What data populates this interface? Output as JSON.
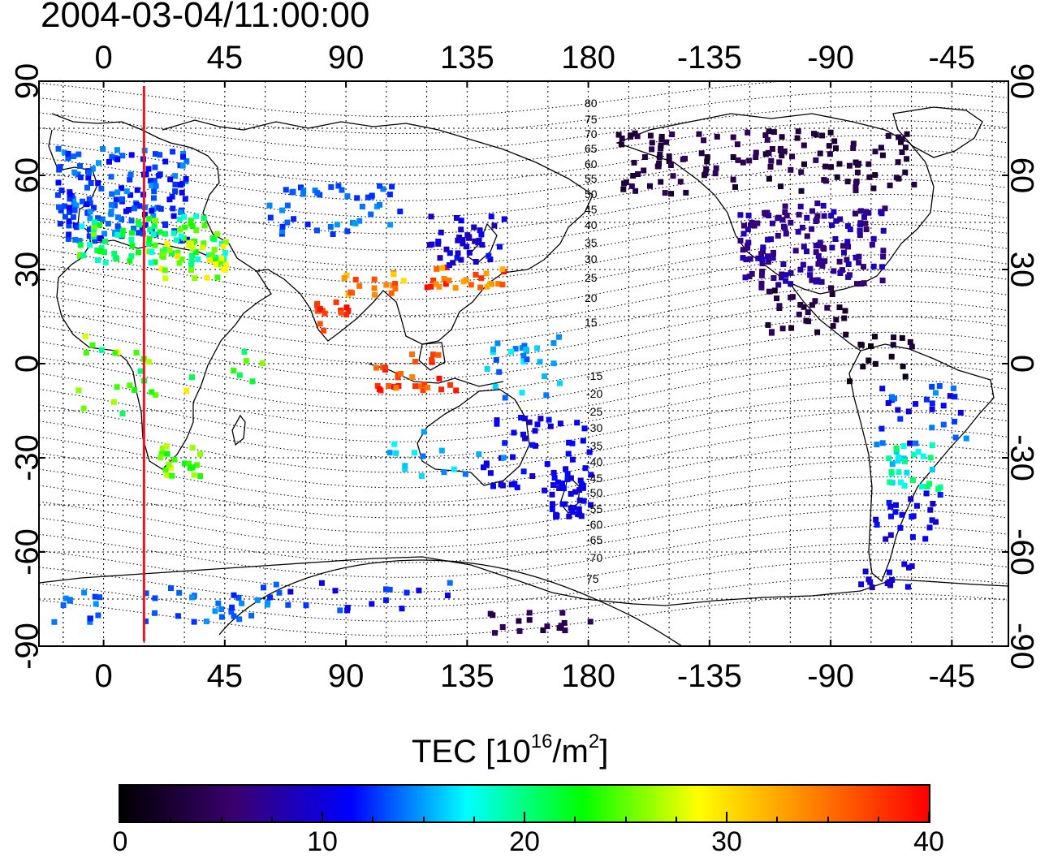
{
  "title": "2004-03-04/11:00:00",
  "map": {
    "top_longitude_labels": [
      "0",
      "45",
      "90",
      "135",
      "180",
      "-135",
      "-90",
      "-45"
    ],
    "bottom_longitude_labels": [
      "0",
      "45",
      "90",
      "135",
      "180",
      "-135",
      "-90",
      "-45"
    ],
    "left_latitude_labels": [
      "90",
      "60",
      "30",
      "0",
      "-30",
      "-60",
      "-90"
    ],
    "right_latitude_labels": [
      "90",
      "60",
      "30",
      "0",
      "-30",
      "-60",
      "-90"
    ],
    "contour_labels_north": [
      "80",
      "75",
      "70",
      "65",
      "60",
      "55",
      "50",
      "45",
      "40",
      "35",
      "30",
      "25",
      "20",
      "15"
    ],
    "contour_labels_south": [
      "-15",
      "-20",
      "-25",
      "-30",
      "-35",
      "-40",
      "-45",
      "-50",
      "-55",
      "-60",
      "-65",
      "-70",
      "75"
    ],
    "terminator_longitude": 15,
    "colors": {
      "terminator": "#e8141e",
      "coast": "#000000",
      "grid": "#000000"
    }
  },
  "colorbar": {
    "title_main": "TEC  [10",
    "title_exp": "16",
    "title_mid": "/m",
    "title_exp2": "2",
    "title_end": "]",
    "range": [
      0,
      40
    ],
    "tick_labels": [
      "0",
      "10",
      "20",
      "30",
      "40"
    ],
    "colors": [
      "#000000",
      "#3a0070",
      "#0000ff",
      "#00ffff",
      "#00ff00",
      "#ffff00",
      "#ff8000",
      "#ff0000"
    ]
  }
}
